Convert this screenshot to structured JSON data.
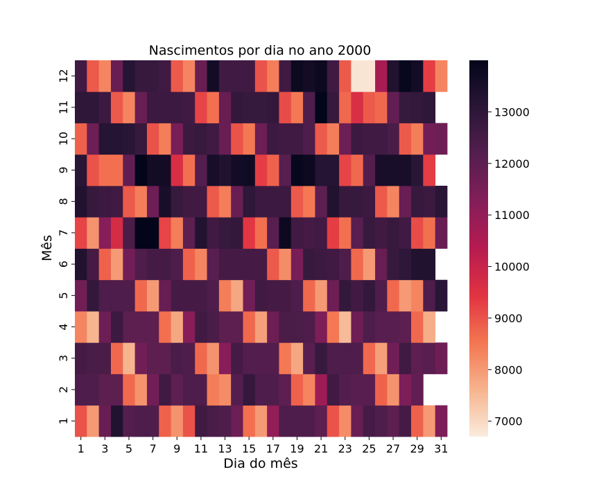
{
  "chart_data": {
    "type": "heatmap",
    "title": "Nascimentos por dia no ano 2000",
    "xlabel": "Dia do mês",
    "ylabel": "Mês",
    "x": [
      1,
      2,
      3,
      4,
      5,
      6,
      7,
      8,
      9,
      10,
      11,
      12,
      13,
      14,
      15,
      16,
      17,
      18,
      19,
      20,
      21,
      22,
      23,
      24,
      25,
      26,
      27,
      28,
      29,
      30,
      31
    ],
    "y": [
      1,
      2,
      3,
      4,
      5,
      6,
      7,
      8,
      9,
      10,
      11,
      12
    ],
    "x_tick_labels": [
      "1",
      "3",
      "5",
      "7",
      "9",
      "11",
      "13",
      "15",
      "17",
      "19",
      "21",
      "23",
      "25",
      "27",
      "29",
      "31"
    ],
    "y_tick_labels": [
      "1",
      "2",
      "3",
      "4",
      "5",
      "6",
      "7",
      "8",
      "9",
      "10",
      "11",
      "12"
    ],
    "colorbar": {
      "min": 6700,
      "max": 14000,
      "ticks": [
        7000,
        8000,
        9000,
        10000,
        11000,
        12000,
        13000
      ],
      "tick_labels": [
        "7000",
        "8000",
        "9000",
        "10000",
        "11000",
        "12000",
        "13000"
      ],
      "colormap": "rocket_r"
    },
    "values": [
      [
        9000,
        8000,
        11800,
        13300,
        12200,
        12300,
        12300,
        8800,
        8100,
        9000,
        12600,
        12400,
        12300,
        11700,
        8600,
        8000,
        11000,
        12300,
        12300,
        12300,
        12000,
        9000,
        8200,
        11800,
        12500,
        12300,
        12000,
        12500,
        8800,
        8000,
        11400
      ],
      [
        12300,
        12300,
        12000,
        12000,
        8700,
        8100,
        11600,
        12600,
        12000,
        12300,
        12300,
        8400,
        8200,
        12200,
        12900,
        12300,
        12300,
        12000,
        8800,
        8300,
        10800,
        12600,
        12200,
        12100,
        12100,
        8800,
        8100,
        11400,
        11900,
        null,
        null
      ],
      [
        12500,
        12400,
        12400,
        8700,
        7600,
        11600,
        12000,
        12000,
        12400,
        12300,
        8700,
        8100,
        11200,
        12500,
        12200,
        12200,
        12200,
        8500,
        7800,
        12100,
        12800,
        12300,
        12300,
        12300,
        8700,
        7900,
        11600,
        12600,
        12000,
        12100,
        11700
      ],
      [
        8300,
        7600,
        11700,
        12700,
        12000,
        12000,
        12000,
        8600,
        7800,
        11200,
        12600,
        12400,
        12000,
        12000,
        8700,
        7900,
        11700,
        12400,
        12400,
        12300,
        11400,
        8500,
        7500,
        11700,
        12300,
        12100,
        12100,
        12000,
        8700,
        7700,
        null
      ],
      [
        11600,
        12900,
        12300,
        12300,
        12300,
        8700,
        8000,
        11800,
        12500,
        12500,
        12500,
        12300,
        8400,
        7800,
        11600,
        12600,
        12500,
        12500,
        12300,
        8700,
        8000,
        11700,
        12900,
        12600,
        12900,
        12300,
        8700,
        8000,
        8300,
        12300,
        13100
      ],
      [
        13300,
        12500,
        8800,
        8000,
        11600,
        12300,
        12500,
        12500,
        12300,
        8800,
        8300,
        12100,
        12500,
        12500,
        12500,
        12500,
        8900,
        8200,
        11500,
        12800,
        12700,
        12600,
        12300,
        8700,
        8000,
        11800,
        12800,
        13000,
        13300,
        13300,
        null
      ],
      [
        9200,
        8100,
        11200,
        9700,
        12400,
        14000,
        14000,
        9200,
        8400,
        12000,
        13300,
        12600,
        12800,
        12900,
        9400,
        8600,
        12100,
        13800,
        12600,
        12500,
        12600,
        9300,
        8600,
        12100,
        12800,
        12600,
        12800,
        12600,
        9100,
        8600,
        11800
      ],
      [
        13300,
        12800,
        12700,
        12600,
        8900,
        8400,
        11700,
        13500,
        12800,
        12600,
        12600,
        8900,
        8400,
        11800,
        13000,
        12700,
        12700,
        12700,
        8900,
        8500,
        12000,
        13300,
        12800,
        12800,
        12700,
        8900,
        8300,
        11800,
        12800,
        12700,
        13100
      ],
      [
        13100,
        9000,
        8600,
        8600,
        11900,
        14000,
        13600,
        13600,
        9600,
        8600,
        12200,
        13500,
        13300,
        13600,
        13700,
        9300,
        8800,
        12100,
        13900,
        13800,
        13200,
        13200,
        9200,
        8700,
        12200,
        13500,
        13500,
        13500,
        13100,
        9300,
        null
      ],
      [
        8800,
        11700,
        13200,
        13200,
        13100,
        12800,
        9000,
        8400,
        11500,
        12700,
        12800,
        12600,
        11800,
        9000,
        8500,
        11700,
        12700,
        12600,
        12600,
        12300,
        8900,
        8400,
        11700,
        12700,
        12600,
        12600,
        12400,
        8900,
        8400,
        11600,
        11700
      ],
      [
        13000,
        13000,
        12700,
        8900,
        8300,
        11800,
        12700,
        12700,
        12700,
        12600,
        9200,
        8600,
        11800,
        12900,
        12800,
        12800,
        12900,
        9100,
        8500,
        12300,
        14000,
        12800,
        8700,
        9600,
        8900,
        8700,
        11900,
        12800,
        12900,
        13000,
        null
      ],
      [
        12600,
        8900,
        8300,
        11800,
        13200,
        12800,
        12800,
        12600,
        8900,
        8300,
        11800,
        13600,
        12600,
        12600,
        12600,
        9000,
        8400,
        12600,
        13800,
        13600,
        13800,
        12600,
        8900,
        6800,
        6800,
        10600,
        13300,
        13900,
        13600,
        9300,
        8300
      ]
    ]
  }
}
